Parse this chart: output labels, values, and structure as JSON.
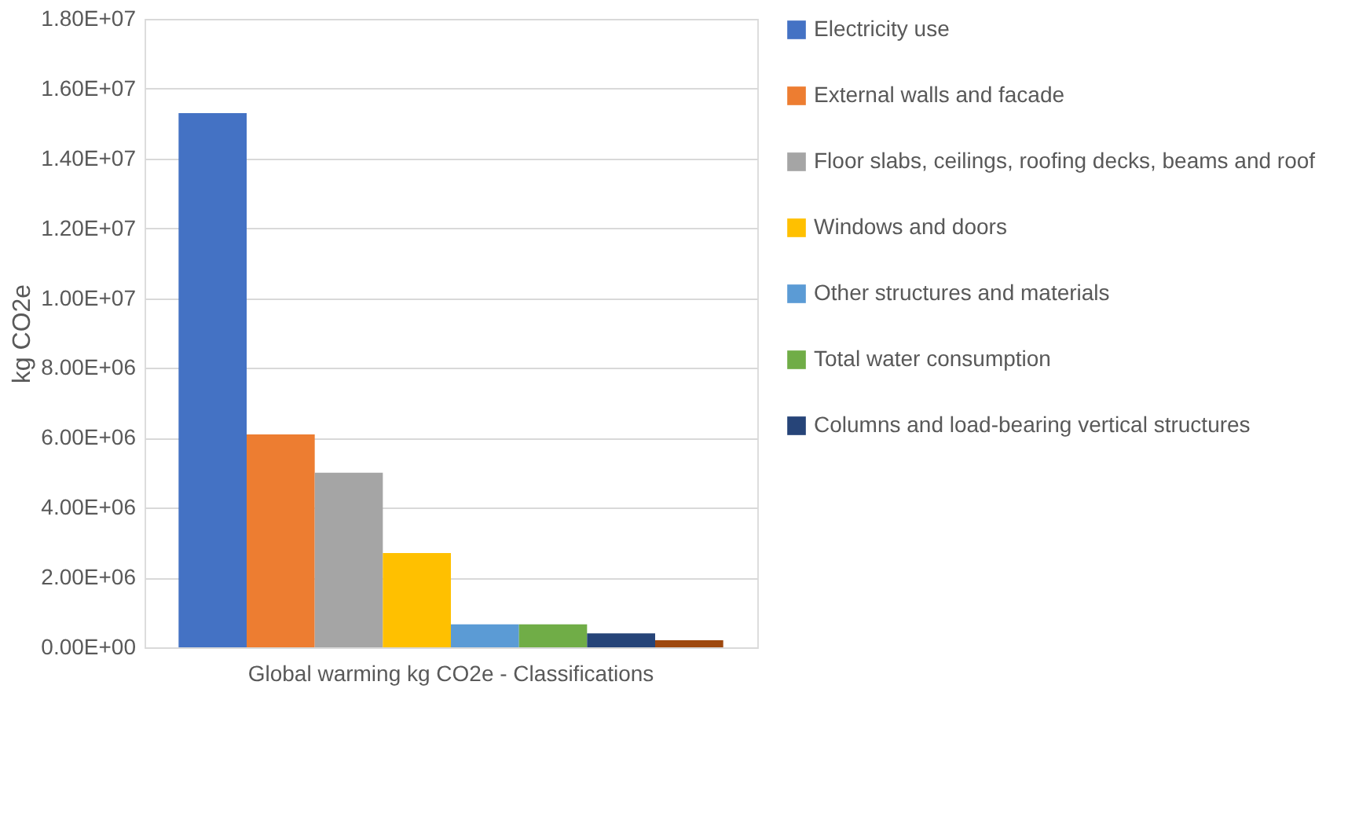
{
  "chart_data": {
    "type": "bar",
    "ylabel": "kg CO2e",
    "categories": [
      "Global warming kg CO2e - Classifications"
    ],
    "series": [
      {
        "name": "Electricity use",
        "color": "#4472c4",
        "values": [
          15300000
        ]
      },
      {
        "name": "External walls and facade",
        "color": "#ed7d31",
        "values": [
          6100000
        ]
      },
      {
        "name": "Floor slabs, ceilings, roofing decks, beams and roof",
        "color": "#a5a5a5",
        "values": [
          5000000
        ]
      },
      {
        "name": "Windows and doors",
        "color": "#ffc000",
        "values": [
          2700000
        ]
      },
      {
        "name": "Other structures and materials",
        "color": "#5b9bd5",
        "values": [
          660000
        ]
      },
      {
        "name": "Total water consumption",
        "color": "#70ad47",
        "values": [
          660000
        ]
      },
      {
        "name": "Columns and load-bearing vertical structures",
        "color": "#264478",
        "values": [
          400000
        ]
      },
      {
        "color": "#9e480e",
        "values": [
          200000
        ]
      }
    ],
    "ylim": [
      0,
      18000000
    ],
    "yticks": [
      {
        "value": 0,
        "label": "0.00E+00"
      },
      {
        "value": 2000000,
        "label": "2.00E+06"
      },
      {
        "value": 4000000,
        "label": "4.00E+06"
      },
      {
        "value": 6000000,
        "label": "6.00E+06"
      },
      {
        "value": 8000000,
        "label": "8.00E+06"
      },
      {
        "value": 10000000,
        "label": "1.00E+07"
      },
      {
        "value": 12000000,
        "label": "1.20E+07"
      },
      {
        "value": 14000000,
        "label": "1.40E+07"
      },
      {
        "value": 16000000,
        "label": "1.60E+07"
      },
      {
        "value": 18000000,
        "label": "1.80E+07"
      }
    ],
    "grid": "y",
    "legend": "right"
  }
}
